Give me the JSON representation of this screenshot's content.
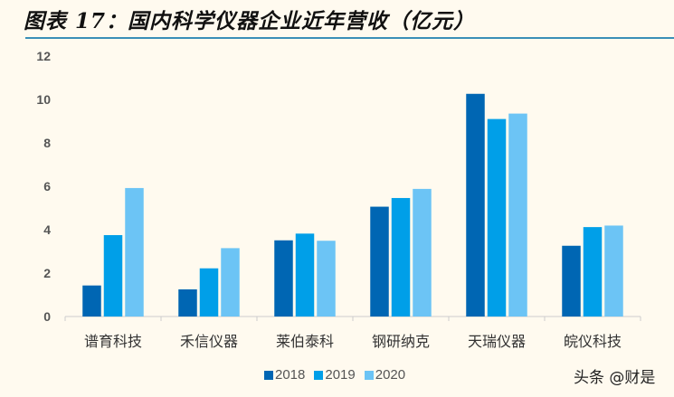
{
  "title": "图表 17：国内科学仪器企业近年营收（亿元）",
  "watermark": "头条 @财是",
  "chart_data": {
    "type": "bar",
    "title": "图表 17：国内科学仪器企业近年营收（亿元）",
    "categories": [
      "谱育科技",
      "禾信仪器",
      "莱伯泰科",
      "钢研纳克",
      "天瑞仪器",
      "皖仪科技"
    ],
    "series": [
      {
        "name": "2018",
        "color": "#0066B3",
        "values": [
          1.43,
          1.25,
          3.51,
          5.06,
          10.26,
          3.26
        ]
      },
      {
        "name": "2019",
        "color": "#009FE8",
        "values": [
          3.75,
          2.22,
          3.82,
          5.46,
          9.1,
          4.12
        ]
      },
      {
        "name": "2020",
        "color": "#6CC4F5",
        "values": [
          5.92,
          3.15,
          3.49,
          5.88,
          9.35,
          4.19
        ]
      }
    ],
    "ylim": [
      0,
      12
    ],
    "yticks": [
      "0",
      "2",
      "4",
      "6",
      "8",
      "10",
      "12"
    ],
    "xlabel": "",
    "ylabel": "",
    "grid": false,
    "legend": "bottom"
  }
}
